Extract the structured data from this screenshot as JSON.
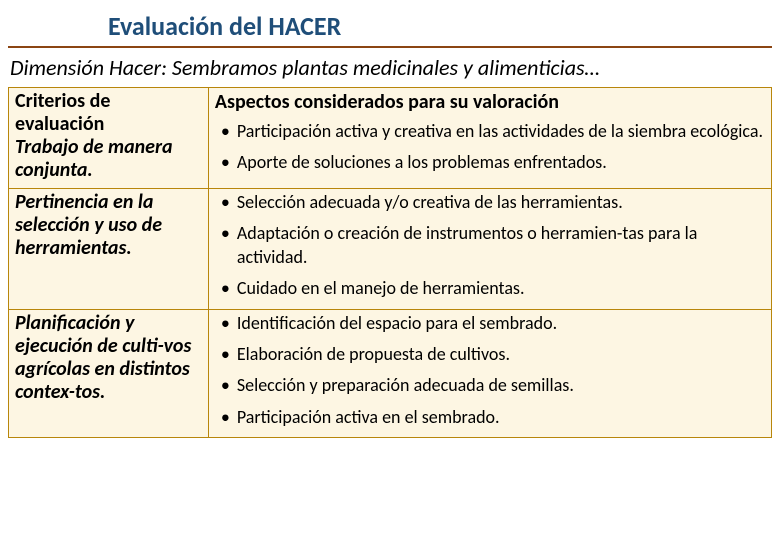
{
  "title": "Evaluación del HACER",
  "subtitle": "Dimensión Hacer: Sembramos plantas medicinales y alimenticias…",
  "headers": {
    "left": "Criterios de evaluación",
    "right": "Aspectos considerados para su valoración"
  },
  "rows": [
    {
      "criteria": "Trabajo de manera conjunta.",
      "aspects": [
        "Participación activa y creativa en las actividades de la siembra ecológica.",
        "Aporte de soluciones a los problemas enfrentados."
      ]
    },
    {
      "criteria": "Pertinencia en la selección y uso de herramientas.",
      "aspects": [
        "Selección adecuada y/o creativa de las herramientas.",
        "Adaptación o creación de instrumentos o herramien-tas para la actividad.",
        "Cuidado en el manejo de herramientas."
      ]
    },
    {
      "criteria": "Planificación y ejecución de culti-vos agrícolas en distintos contex-tos.",
      "aspects": [
        "Identificación del espacio para el sembrado.",
        "Elaboración de propuesta de cultivos.",
        "Selección y preparación adecuada de semillas.",
        "Participación activa en el sembrado."
      ]
    }
  ],
  "colors": {
    "title_color": "#1f4e79",
    "title_underline": "#8b4513",
    "table_border": "#b8860b",
    "table_bg": "#fdf6e3",
    "page_bg": "#ffffff"
  }
}
